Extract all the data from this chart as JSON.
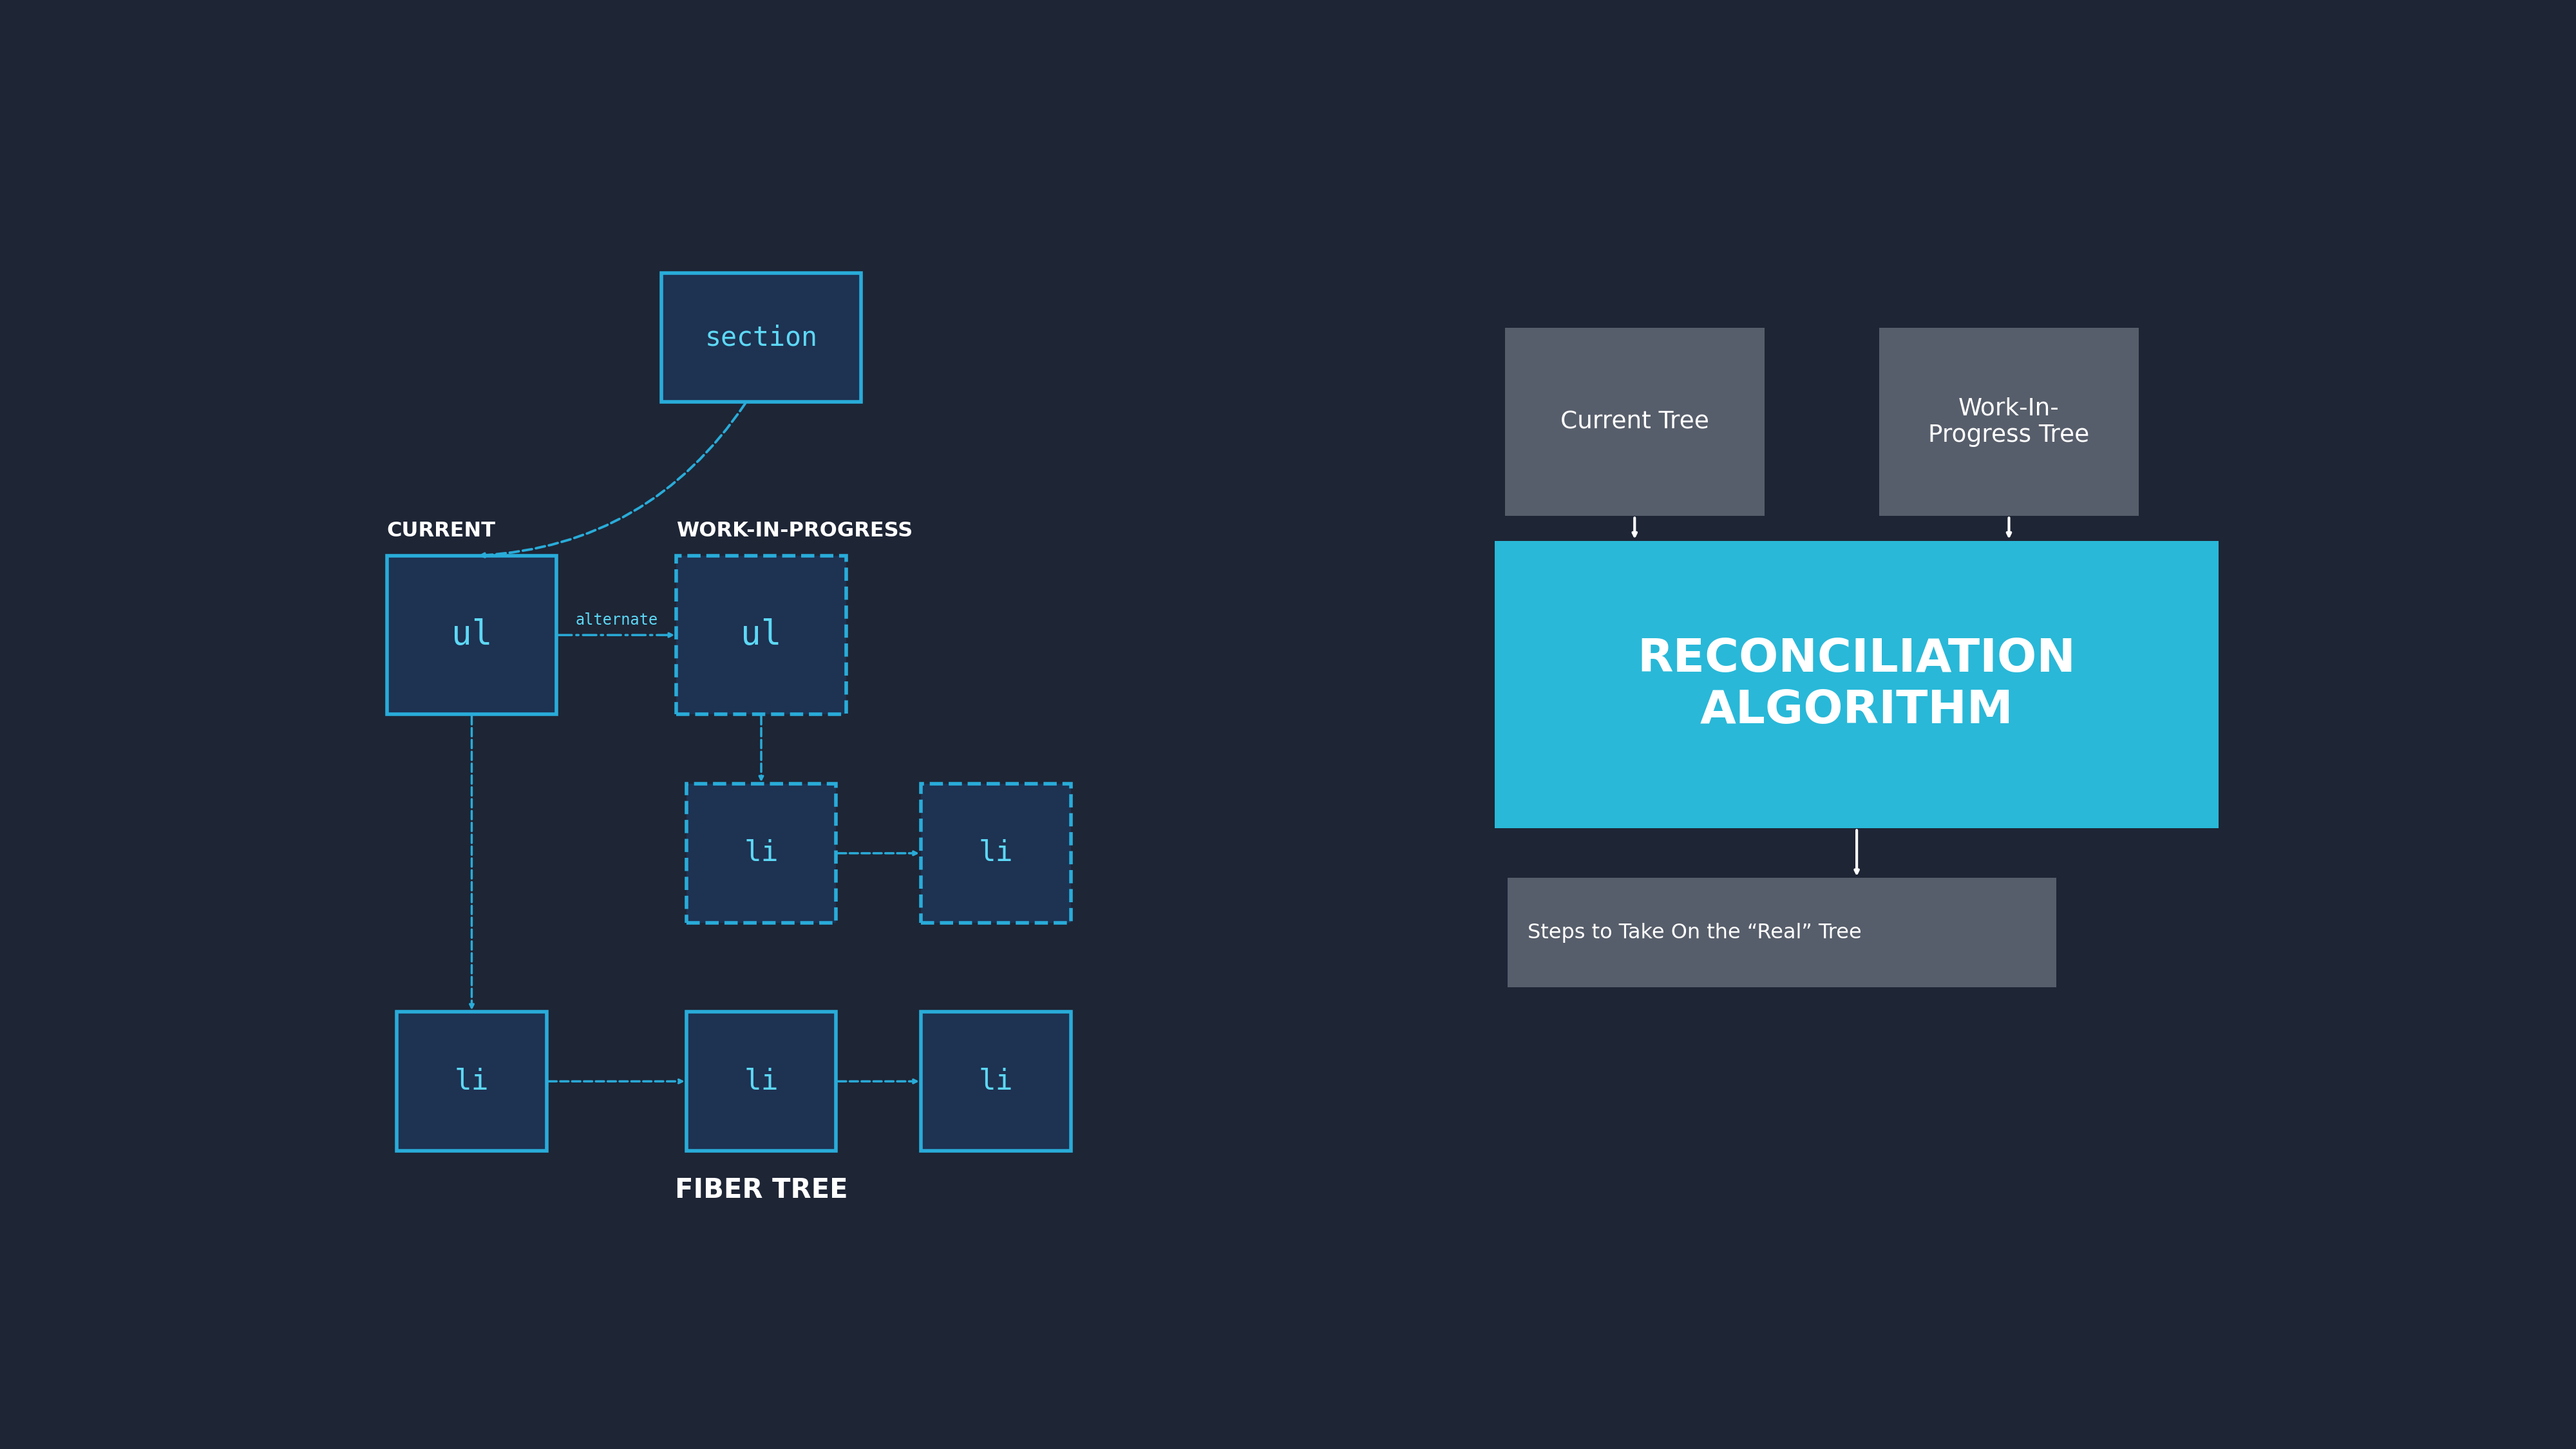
{
  "bg_color": "#1e2535",
  "cyan": "#29acd9",
  "cyan_light": "#5dd8f5",
  "node_fill": "#1e3252",
  "gray_box": "#575e6b",
  "reconcile_blue": "#29b8d8",
  "white": "#ffffff",
  "section_label": "section",
  "current_label": "CURRENT",
  "wip_label": "WORK-IN-PROGRESS",
  "fiber_label": "FIBER TREE",
  "alternate_label": "alternate",
  "ul_label": "ul",
  "li_label": "li",
  "current_tree_label": "Current Tree",
  "wip_tree_label": "Work-In-\nProgress Tree",
  "reconciliation_label": "RECONCILIATION\nALGORITHM",
  "output_label": "Steps to Take On the “Real” Tree"
}
